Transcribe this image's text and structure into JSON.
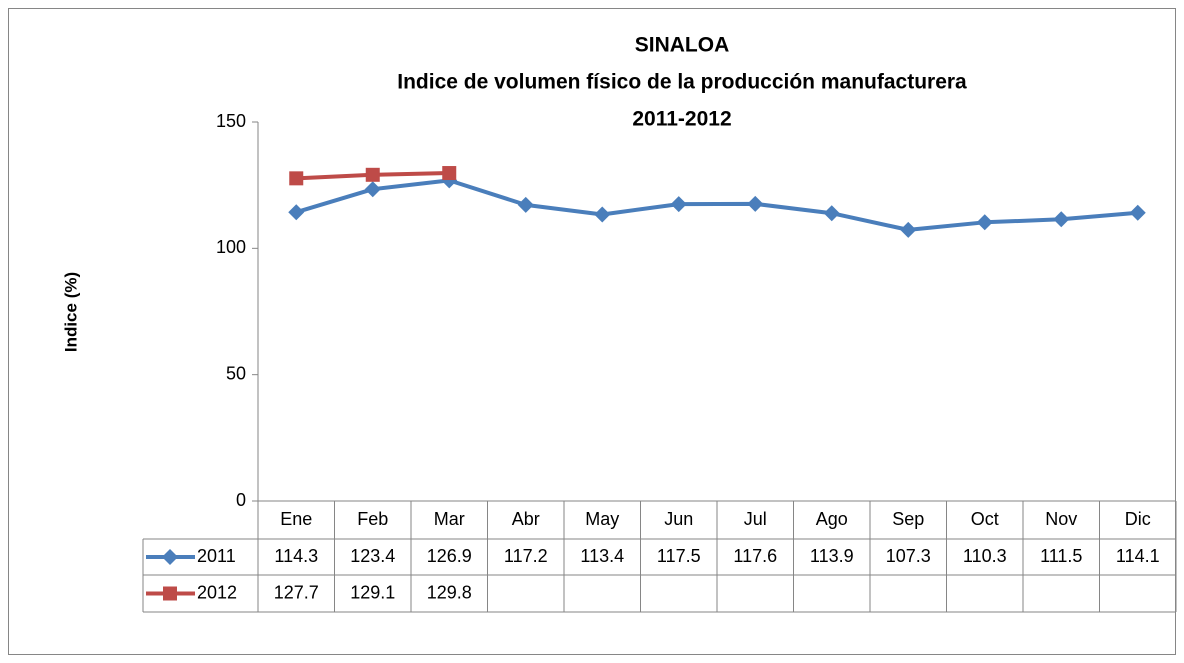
{
  "chart_data": {
    "type": "line",
    "title": [
      "SINALOA",
      "Indice de volumen físico de la producción manufacturera",
      "2011-2012"
    ],
    "y_label": "Indice (%)",
    "categories": [
      "Ene",
      "Feb",
      "Mar",
      "Abr",
      "May",
      "Jun",
      "Jul",
      "Ago",
      "Sep",
      "Oct",
      "Nov",
      "Dic"
    ],
    "series": [
      {
        "name": "2011",
        "color": "#4a7ebb",
        "marker": "diamond",
        "values": [
          114.3,
          123.4,
          126.9,
          117.2,
          113.4,
          117.5,
          117.6,
          113.9,
          107.3,
          110.3,
          111.5,
          114.1
        ]
      },
      {
        "name": "2012",
        "color": "#be4b48",
        "marker": "square",
        "values": [
          127.7,
          129.1,
          129.8,
          null,
          null,
          null,
          null,
          null,
          null,
          null,
          null,
          null
        ]
      }
    ],
    "ylim": [
      0,
      150
    ],
    "yticks": [
      0,
      50,
      100,
      150
    ],
    "data_table": true
  }
}
